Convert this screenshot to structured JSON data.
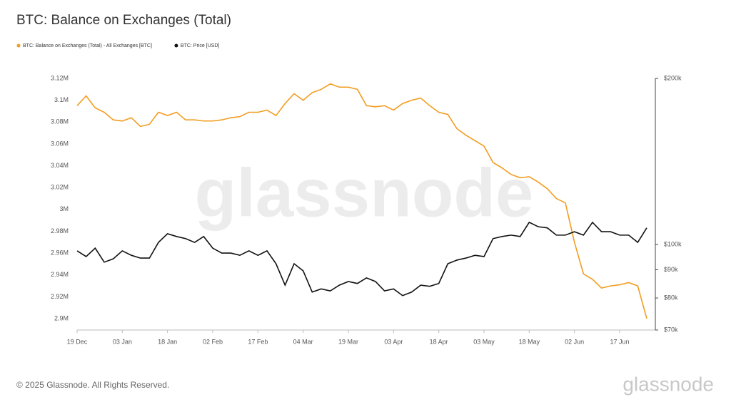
{
  "chart_data": {
    "type": "line",
    "title": "BTC: Balance on Exchanges (Total)",
    "watermark": "glassnode",
    "categories": [
      "19 Dec",
      null,
      null,
      null,
      null,
      "03 Jan",
      null,
      null,
      null,
      null,
      "18 Jan",
      null,
      null,
      null,
      null,
      "02 Feb",
      null,
      null,
      null,
      null,
      "17 Feb",
      null,
      null,
      null,
      null,
      "04 Mar",
      null,
      null,
      null,
      null,
      "19 Mar",
      null,
      null,
      null,
      null,
      "03 Apr",
      null,
      null,
      null,
      null,
      "18 Apr",
      null,
      null,
      null,
      null,
      "03 May",
      null,
      null,
      null,
      null,
      "18 May",
      null,
      null,
      null,
      null,
      "02 Jun",
      null,
      null,
      null,
      null,
      "17 Jun",
      null,
      null,
      null
    ],
    "series": [
      {
        "name": "BTC: Balance on Exchanges (Total) - All Exchanges [BTC]",
        "color": "#f39c1f",
        "values": [
          3095000,
          3104000,
          3093000,
          3089000,
          3082000,
          3081000,
          3084000,
          3076000,
          3078000,
          3089000,
          3086000,
          3089000,
          3082000,
          3082000,
          3081000,
          3081000,
          3082000,
          3084000,
          3085000,
          3089000,
          3089000,
          3091000,
          3086000,
          3097000,
          3106000,
          3100000,
          3107000,
          3110000,
          3115000,
          3112000,
          3112000,
          3110000,
          3095000,
          3094000,
          3095000,
          3091000,
          3097000,
          3100000,
          3102000,
          3095000,
          3089000,
          3087000,
          3074000,
          3068000,
          3063000,
          3058000,
          3043000,
          3038000,
          3032000,
          3029000,
          3030000,
          3025000,
          3019000,
          3010000,
          3006000,
          2970000,
          2941000,
          2936000,
          2928000,
          2930000,
          2931000,
          2933000,
          2930000,
          2900000
        ]
      },
      {
        "name": "BTC: Price [USD]",
        "color": "#111111",
        "axis": "y2",
        "values": [
          97400,
          95100,
          98500,
          92900,
          94200,
          97400,
          95600,
          94500,
          94500,
          100900,
          104600,
          103400,
          102500,
          100900,
          103400,
          98500,
          96500,
          96500,
          95600,
          97400,
          95600,
          97400,
          92300,
          84400,
          92300,
          89600,
          82000,
          83100,
          82400,
          84400,
          85700,
          85000,
          87000,
          85700,
          82400,
          83100,
          80800,
          82000,
          84400,
          84000,
          85000,
          92300,
          93700,
          94500,
          95600,
          95100,
          102500,
          103400,
          104000,
          103400,
          109700,
          107700,
          107200,
          104000,
          104000,
          105500,
          104000,
          109700,
          105500,
          105500,
          104000,
          104000,
          100900,
          107200
        ]
      }
    ],
    "ylim": [
      2889600,
      3120000
    ],
    "yticks": [
      {
        "value": 2900000,
        "label": "2.9M"
      },
      {
        "value": 2920000,
        "label": "2.92M"
      },
      {
        "value": 2940000,
        "label": "2.94M"
      },
      {
        "value": 2960000,
        "label": "2.96M"
      },
      {
        "value": 2980000,
        "label": "2.98M"
      },
      {
        "value": 3000000,
        "label": "3M"
      },
      {
        "value": 3020000,
        "label": "3.02M"
      },
      {
        "value": 3040000,
        "label": "3.04M"
      },
      {
        "value": 3060000,
        "label": "3.06M"
      },
      {
        "value": 3080000,
        "label": "3.08M"
      },
      {
        "value": 3100000,
        "label": "3.1M"
      },
      {
        "value": 3120000,
        "label": "3.12M"
      }
    ],
    "y2lim": [
      70000,
      200000
    ],
    "y2log": true,
    "y2ticks": [
      {
        "value": 70000,
        "label": "$70k"
      },
      {
        "value": 80000,
        "label": "$80k"
      },
      {
        "value": 90000,
        "label": "$90k"
      },
      {
        "value": 100000,
        "label": "$100k"
      },
      {
        "value": 200000,
        "label": "$200k"
      }
    ],
    "grid": false
  },
  "footer": {
    "copyright": "© 2025 Glassnode. All Rights Reserved.",
    "brand": "glassnode"
  }
}
